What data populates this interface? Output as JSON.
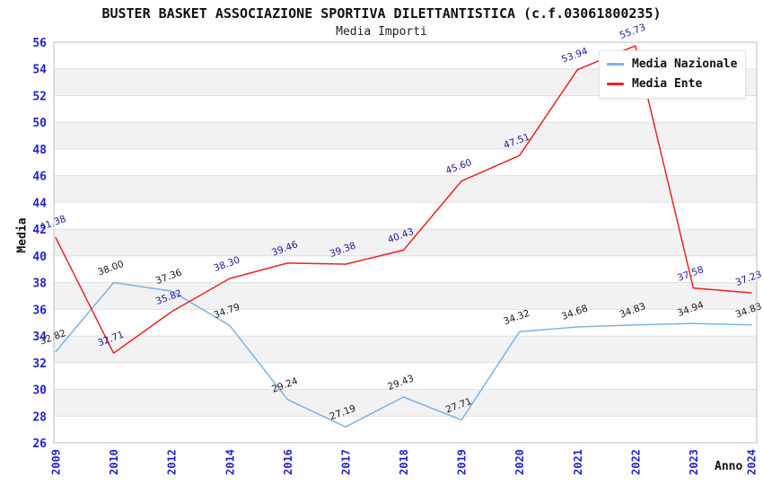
{
  "header": {
    "title": "BUSTER BASKET ASSOCIAZIONE SPORTIVA DILETTANTISTICA (c.f.03061800235)",
    "subtitle": "Media Importi"
  },
  "chart_data": {
    "type": "line",
    "title": "BUSTER BASKET ASSOCIAZIONE SPORTIVA DILETTANTISTICA (c.f.03061800235)",
    "subtitle": "Media Importi",
    "categories": [
      "2009",
      "2010",
      "2012",
      "2014",
      "2016",
      "2017",
      "2018",
      "2019",
      "2020",
      "2021",
      "2022",
      "2023",
      "2024"
    ],
    "series": [
      {
        "name": "Media Nazionale",
        "color": "#7ab3e8",
        "label_color": "#1a1a1a",
        "values": [
          32.82,
          38.0,
          37.36,
          34.79,
          29.24,
          27.19,
          29.43,
          27.71,
          34.32,
          34.68,
          34.83,
          34.94,
          34.83
        ]
      },
      {
        "name": "Media Ente",
        "color": "#ee2222",
        "label_color": "#1a1a9e",
        "values": [
          41.38,
          32.71,
          35.82,
          38.3,
          39.46,
          39.38,
          40.43,
          45.6,
          47.51,
          53.94,
          55.73,
          37.58,
          37.23
        ]
      }
    ],
    "xlabel": "Anno",
    "ylabel": "Media",
    "ylim": [
      26,
      56
    ],
    "y_ticks": [
      56,
      54,
      52,
      50,
      48,
      46,
      44,
      42,
      40,
      38,
      36,
      34,
      32,
      30,
      28,
      26
    ],
    "grid": true,
    "legend_position": "top-right",
    "band_colors": [
      "#ffffff",
      "#f2f2f2"
    ],
    "gridline_color": "#e0e0e0",
    "border_color": "#bdbdbd",
    "tick_label_color": "#2222cc"
  }
}
